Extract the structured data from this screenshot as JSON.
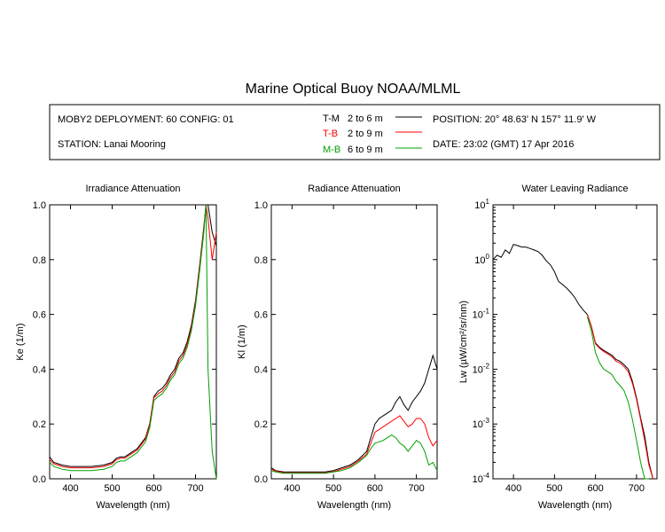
{
  "title": "Marine Optical Buoy NOAA/MLML",
  "header": {
    "deployment": "MOBY2 DEPLOYMENT: 60 CONFIG: 01",
    "station": "STATION: Lanai Mooring",
    "position": "POSITION: 20° 48.63' N   157° 11.9' W",
    "date": "DATE: 23:02 (GMT) 17 Apr 2016"
  },
  "legend": [
    {
      "key": "T-M",
      "range": "2 to 6  m",
      "color": "#000000"
    },
    {
      "key": "T-B",
      "range": "2 to 9  m",
      "color": "#ff0000"
    },
    {
      "key": "M-B",
      "range": "6 to 9  m",
      "color": "#00a000"
    }
  ],
  "chart_data": [
    {
      "type": "line",
      "title": "Irradiance Attenuation",
      "xlabel": "Wavelength (nm)",
      "ylabel": "Ke  (1/m)",
      "xlim": [
        350,
        750
      ],
      "ylim": [
        0,
        1
      ],
      "yscale": "linear",
      "xticks": [
        "400",
        "500",
        "600",
        "700"
      ],
      "yticks": [
        "0.0",
        "0.2",
        "0.4",
        "0.6",
        "0.8",
        "1.0"
      ],
      "series": [
        {
          "name": "T-M",
          "color": "#000000",
          "x": [
            350,
            360,
            380,
            400,
            420,
            450,
            480,
            500,
            510,
            520,
            530,
            540,
            560,
            580,
            590,
            595,
            600,
            610,
            620,
            630,
            640,
            650,
            660,
            670,
            680,
            690,
            700,
            710,
            720,
            725,
            730,
            740,
            750
          ],
          "y": [
            0.08,
            0.06,
            0.05,
            0.045,
            0.045,
            0.045,
            0.05,
            0.06,
            0.075,
            0.08,
            0.08,
            0.09,
            0.11,
            0.15,
            0.2,
            0.25,
            0.3,
            0.32,
            0.33,
            0.35,
            0.38,
            0.4,
            0.44,
            0.46,
            0.5,
            0.56,
            0.65,
            0.78,
            0.92,
            1.0,
            1.0,
            0.9,
            0.85
          ]
        },
        {
          "name": "T-B",
          "color": "#ff0000",
          "x": [
            350,
            360,
            380,
            400,
            420,
            450,
            480,
            500,
            510,
            520,
            530,
            540,
            560,
            580,
            590,
            595,
            600,
            610,
            620,
            630,
            640,
            650,
            660,
            670,
            680,
            690,
            700,
            710,
            720,
            725,
            730,
            740,
            750
          ],
          "y": [
            0.07,
            0.055,
            0.045,
            0.04,
            0.04,
            0.04,
            0.045,
            0.055,
            0.07,
            0.075,
            0.075,
            0.085,
            0.105,
            0.145,
            0.195,
            0.245,
            0.295,
            0.31,
            0.32,
            0.34,
            0.37,
            0.39,
            0.43,
            0.45,
            0.49,
            0.55,
            0.64,
            0.77,
            0.91,
            1.0,
            0.95,
            0.8,
            0.9
          ]
        },
        {
          "name": "M-B",
          "color": "#00a000",
          "x": [
            350,
            360,
            380,
            400,
            420,
            450,
            480,
            500,
            510,
            520,
            530,
            540,
            560,
            580,
            590,
            595,
            600,
            610,
            620,
            630,
            640,
            650,
            660,
            670,
            680,
            690,
            700,
            710,
            720,
            725,
            730,
            740,
            750
          ],
          "y": [
            0.06,
            0.045,
            0.035,
            0.03,
            0.03,
            0.03,
            0.035,
            0.045,
            0.06,
            0.065,
            0.065,
            0.075,
            0.095,
            0.135,
            0.185,
            0.235,
            0.285,
            0.3,
            0.31,
            0.33,
            0.36,
            0.38,
            0.42,
            0.44,
            0.48,
            0.54,
            0.63,
            0.76,
            0.9,
            1.0,
            0.4,
            0.1,
            0.0
          ]
        }
      ]
    },
    {
      "type": "line",
      "title": "Radiance Attenuation",
      "xlabel": "Wavelength (nm)",
      "ylabel": "Kl  (1/m)",
      "xlim": [
        350,
        750
      ],
      "ylim": [
        0,
        1
      ],
      "yscale": "linear",
      "xticks": [
        "400",
        "500",
        "600",
        "700"
      ],
      "yticks": [
        "0.0",
        "0.2",
        "0.4",
        "0.6",
        "0.8",
        "1.0"
      ],
      "series": [
        {
          "name": "T-M",
          "color": "#000000",
          "x": [
            350,
            360,
            380,
            400,
            420,
            450,
            480,
            500,
            520,
            540,
            560,
            580,
            590,
            600,
            610,
            620,
            630,
            640,
            650,
            660,
            670,
            680,
            690,
            700,
            710,
            720,
            730,
            740,
            750
          ],
          "y": [
            0.04,
            0.03,
            0.025,
            0.025,
            0.025,
            0.025,
            0.025,
            0.03,
            0.04,
            0.05,
            0.07,
            0.1,
            0.15,
            0.2,
            0.22,
            0.23,
            0.24,
            0.25,
            0.28,
            0.3,
            0.27,
            0.25,
            0.28,
            0.3,
            0.32,
            0.35,
            0.4,
            0.45,
            0.4
          ]
        },
        {
          "name": "T-B",
          "color": "#ff0000",
          "x": [
            350,
            360,
            380,
            400,
            420,
            450,
            480,
            500,
            520,
            540,
            560,
            580,
            590,
            600,
            610,
            620,
            630,
            640,
            650,
            660,
            670,
            680,
            690,
            700,
            710,
            720,
            730,
            740,
            750
          ],
          "y": [
            0.035,
            0.028,
            0.022,
            0.022,
            0.022,
            0.022,
            0.022,
            0.027,
            0.035,
            0.045,
            0.065,
            0.09,
            0.13,
            0.17,
            0.18,
            0.19,
            0.2,
            0.21,
            0.22,
            0.23,
            0.21,
            0.19,
            0.2,
            0.22,
            0.22,
            0.2,
            0.15,
            0.12,
            0.14
          ]
        },
        {
          "name": "M-B",
          "color": "#00a000",
          "x": [
            350,
            360,
            380,
            400,
            420,
            450,
            480,
            500,
            520,
            540,
            560,
            580,
            590,
            600,
            610,
            620,
            630,
            640,
            650,
            660,
            670,
            680,
            690,
            700,
            710,
            720,
            730,
            740,
            750
          ],
          "y": [
            0.03,
            0.025,
            0.02,
            0.02,
            0.02,
            0.02,
            0.02,
            0.025,
            0.03,
            0.04,
            0.06,
            0.085,
            0.11,
            0.13,
            0.135,
            0.14,
            0.15,
            0.16,
            0.15,
            0.13,
            0.12,
            0.1,
            0.12,
            0.14,
            0.13,
            0.1,
            0.05,
            0.06,
            0.03
          ]
        }
      ]
    },
    {
      "type": "line",
      "title": "Water Leaving Radiance",
      "xlabel": "Wavelength (nm)",
      "ylabel": "Lw  (µW/cm²/sr/nm)",
      "xlim": [
        350,
        750
      ],
      "ylim": [
        0.0001,
        10
      ],
      "yscale": "log",
      "xticks": [
        "400",
        "500",
        "600",
        "700"
      ],
      "yticks": [
        "10-4",
        "10-3",
        "10-2",
        "10-1",
        "100",
        "101"
      ],
      "series": [
        {
          "name": "T-M",
          "color": "#000000",
          "x": [
            350,
            360,
            370,
            380,
            390,
            400,
            410,
            420,
            430,
            440,
            450,
            460,
            470,
            480,
            490,
            500,
            510,
            520,
            530,
            540,
            550,
            560,
            570,
            580,
            590,
            600,
            610,
            620,
            630,
            640,
            650,
            660,
            670,
            680,
            690,
            700,
            710,
            720,
            730,
            740
          ],
          "y": [
            1.0,
            1.2,
            1.1,
            1.5,
            1.3,
            1.9,
            1.8,
            1.7,
            1.7,
            1.6,
            1.5,
            1.4,
            1.2,
            0.95,
            0.8,
            0.6,
            0.4,
            0.35,
            0.3,
            0.25,
            0.2,
            0.15,
            0.12,
            0.1,
            0.06,
            0.03,
            0.025,
            0.022,
            0.02,
            0.018,
            0.015,
            0.014,
            0.012,
            0.01,
            0.006,
            0.003,
            0.0013,
            0.0006,
            0.0002,
            0.0001
          ]
        },
        {
          "name": "T-B",
          "color": "#ff0000",
          "x": [
            580,
            590,
            600,
            610,
            620,
            630,
            640,
            650,
            660,
            670,
            680,
            690,
            700,
            710,
            720,
            730,
            740
          ],
          "y": [
            0.1,
            0.06,
            0.029,
            0.024,
            0.021,
            0.019,
            0.017,
            0.014,
            0.013,
            0.011,
            0.009,
            0.0055,
            0.0028,
            0.0012,
            0.0005,
            0.00018,
            0.0001
          ]
        },
        {
          "name": "M-B",
          "color": "#00a000",
          "x": [
            580,
            590,
            600,
            610,
            620,
            630,
            640,
            650,
            660,
            670,
            680,
            690,
            700,
            710,
            720,
            730
          ],
          "y": [
            0.09,
            0.05,
            0.02,
            0.013,
            0.01,
            0.009,
            0.008,
            0.006,
            0.005,
            0.004,
            0.0025,
            0.0012,
            0.0005,
            0.0002,
            0.0001,
            0.0001
          ]
        }
      ]
    }
  ]
}
